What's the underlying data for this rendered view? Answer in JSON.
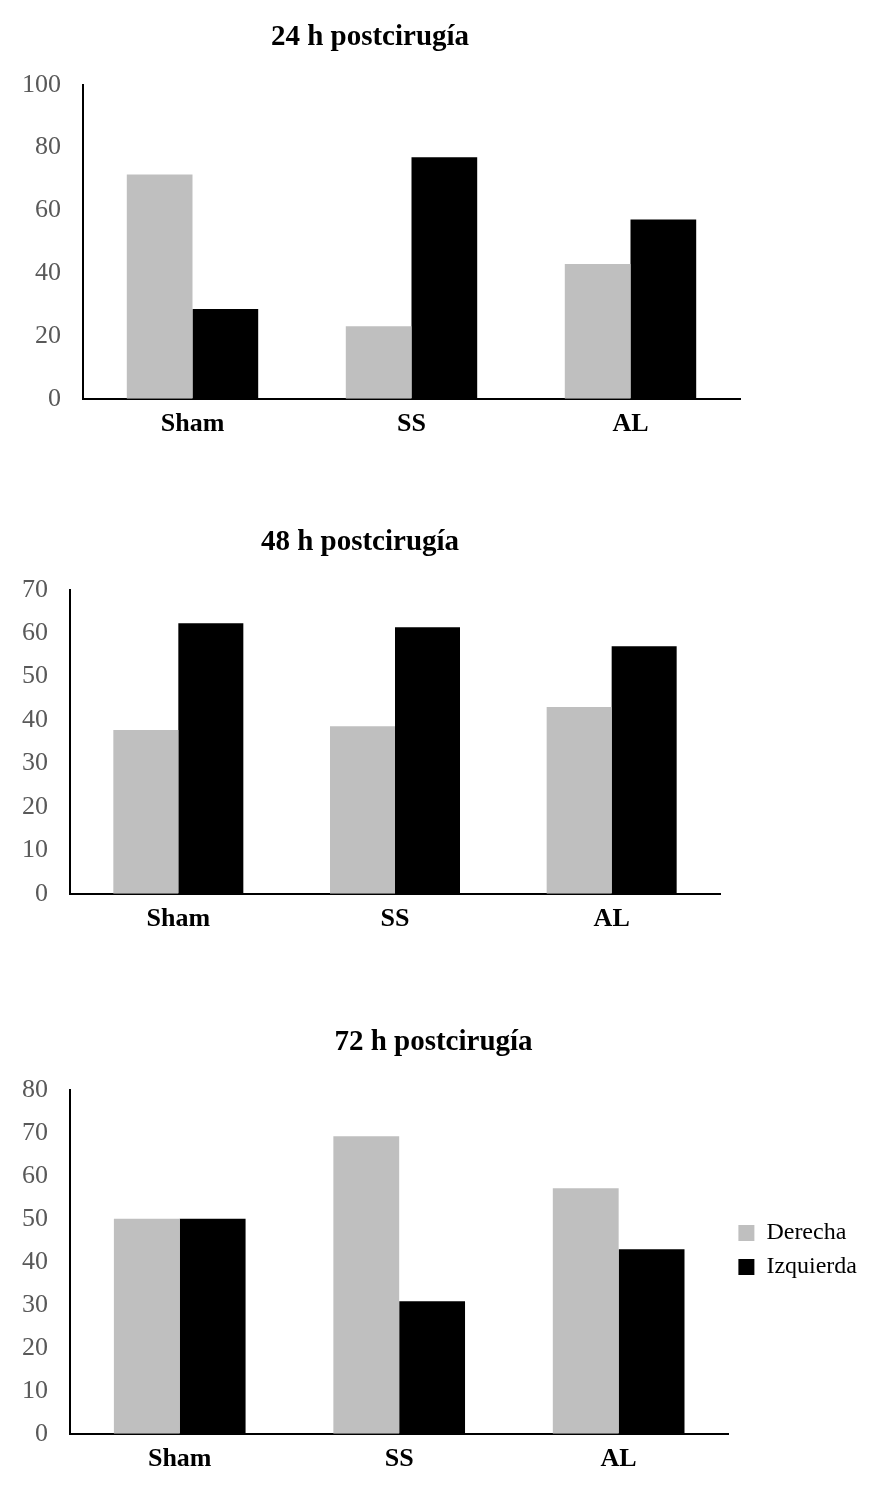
{
  "chart_data": [
    {
      "type": "bar",
      "title": "24 h postcirugía",
      "categories": [
        "Sham",
        "SS",
        "AL"
      ],
      "series": [
        {
          "color": "#bfbfbf",
          "values": [
            71.4,
            23.1,
            42.9
          ]
        },
        {
          "color": "#000000",
          "values": [
            28.6,
            76.9,
            57.1
          ]
        }
      ],
      "ylim": [
        0,
        100
      ],
      "yticks": [
        0,
        20,
        40,
        60,
        80,
        100
      ],
      "grid": false,
      "legend": false
    },
    {
      "type": "bar",
      "title": "48 h postcirugía",
      "categories": [
        "Sham",
        "SS",
        "AL"
      ],
      "series": [
        {
          "color": "#bfbfbf",
          "values": [
            37.7,
            38.6,
            43.0
          ]
        },
        {
          "color": "#000000",
          "values": [
            62.3,
            61.4,
            57.0
          ]
        }
      ],
      "ylim": [
        0,
        70
      ],
      "yticks": [
        0,
        10,
        20,
        30,
        40,
        50,
        60,
        70
      ],
      "grid": false,
      "legend": false
    },
    {
      "type": "bar",
      "title": "72 h postcirugía",
      "categories": [
        "Sham",
        "SS",
        "AL"
      ],
      "series": [
        {
          "name": "Derecha",
          "color": "#bfbfbf",
          "values": [
            50.0,
            69.2,
            57.1
          ]
        },
        {
          "name": "Izquierda",
          "color": "#000000",
          "values": [
            50.0,
            30.8,
            42.9
          ]
        }
      ],
      "ylim": [
        0,
        80
      ],
      "yticks": [
        0,
        10,
        20,
        30,
        40,
        50,
        60,
        70,
        80
      ],
      "grid": false,
      "legend": "right"
    }
  ]
}
